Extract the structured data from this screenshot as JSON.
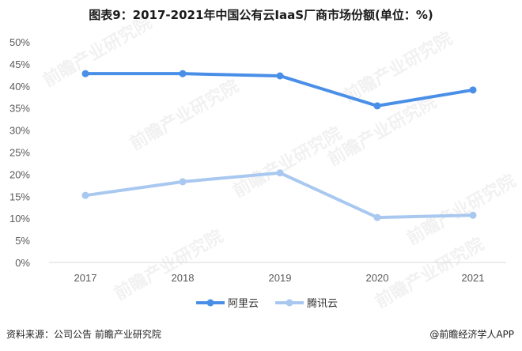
{
  "title": "图表9：2017-2021年中国公有云IaaS厂商市场份额(单位：%)",
  "chart_data": {
    "type": "line",
    "title": "图表9：2017-2021年中国公有云IaaS厂商市场份额(单位：%)",
    "xlabel": "",
    "ylabel": "",
    "categories": [
      "2017",
      "2018",
      "2019",
      "2020",
      "2021"
    ],
    "series": [
      {
        "name": "阿里云",
        "color": "#4a8fe7",
        "values": [
          42.8,
          42.8,
          42.3,
          35.5,
          39.1
        ]
      },
      {
        "name": "腾讯云",
        "color": "#a9c8f0",
        "values": [
          15.2,
          18.3,
          20.3,
          10.2,
          10.7
        ]
      }
    ],
    "ylim": [
      0,
      50
    ],
    "yticks": [
      "0%",
      "5%",
      "10%",
      "15%",
      "20%",
      "25%",
      "30%",
      "35%",
      "40%",
      "45%",
      "50%"
    ],
    "grid": false,
    "legend_position": "bottom"
  },
  "legend": [
    {
      "label": "阿里云",
      "color": "#4a8fe7"
    },
    {
      "label": "腾讯云",
      "color": "#a9c8f0"
    }
  ],
  "footer": {
    "source": "资料来源：公司公告 前瞻产业研究院",
    "credit": "@前瞻经济学人APP"
  },
  "watermark": "前瞻产业研究院"
}
